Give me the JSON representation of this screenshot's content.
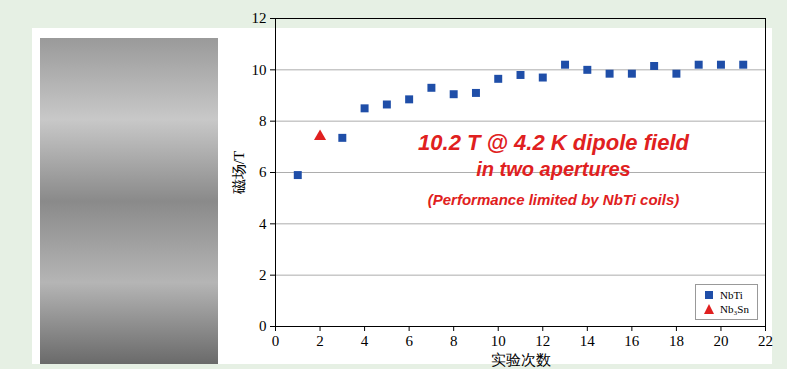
{
  "chart_data": {
    "type": "scatter",
    "x_label": "实验次数",
    "y_label": "磁场/T",
    "annotations": [
      "10.2 T @ 4.2 K dipole field",
      "in two apertures",
      "(Performance limited by NbTi coils)"
    ],
    "series": [
      {
        "name": "NbTi",
        "color": "#1f4ea8",
        "marker": "square",
        "x": [
          1,
          3,
          4,
          5,
          6,
          7,
          8,
          9,
          10,
          11,
          12,
          13,
          14,
          15,
          16,
          17,
          18,
          19,
          20,
          21
        ],
        "values": [
          5.9,
          7.35,
          8.5,
          8.65,
          8.85,
          9.3,
          9.05,
          9.1,
          9.65,
          9.8,
          9.7,
          10.2,
          10.0,
          9.85,
          9.85,
          10.15,
          9.85,
          10.2,
          10.2,
          10.2
        ]
      },
      {
        "name": "Nb₃Sn",
        "color": "#e02020",
        "marker": "triangle",
        "x": [
          2
        ],
        "values": [
          7.4
        ]
      }
    ],
    "xlim": [
      0,
      22
    ],
    "xticks": [
      0,
      2,
      4,
      6,
      8,
      10,
      12,
      14,
      16,
      18,
      20,
      22
    ],
    "ylim": [
      0,
      12
    ],
    "yticks": [
      0,
      2,
      4,
      6,
      8,
      10,
      12
    ],
    "grid": true,
    "legend": "lower right"
  }
}
